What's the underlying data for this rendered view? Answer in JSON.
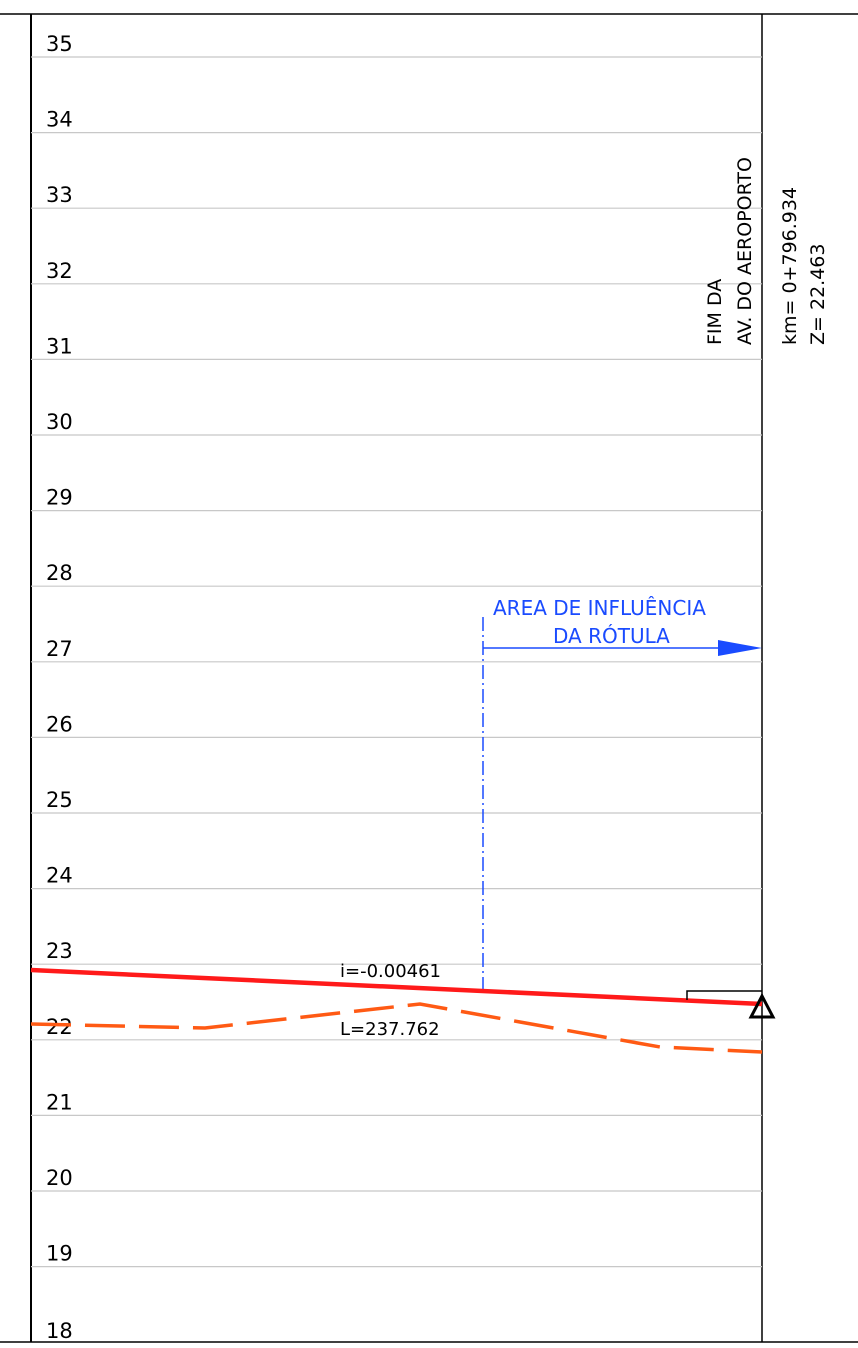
{
  "profile": {
    "elevations": [
      "35",
      "34",
      "33",
      "32",
      "31",
      "30",
      "29",
      "28",
      "27",
      "26",
      "25",
      "24",
      "23",
      "22",
      "21",
      "20",
      "19",
      "18"
    ],
    "end_label_line1": "FIM DA",
    "end_label_line2": "AV. DO AEROPORTO",
    "chainage": "km= 0+796.934",
    "elevation_value": "Z= 22.463",
    "influence_line1": "AREA DE INFLUÊNCIA",
    "influence_line2": "DA RÓTULA",
    "grade": "i=-0.00461",
    "length": "L=237.762",
    "colors": {
      "grade_line": "#ff1a1a",
      "terrain_line": "#ff5a14",
      "influence": "#1a4bff",
      "grid": "#c8c8c8",
      "frame": "#000000"
    }
  }
}
